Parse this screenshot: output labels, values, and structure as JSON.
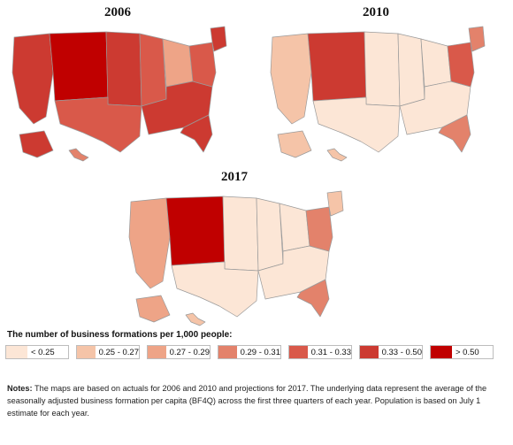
{
  "legend": {
    "title": "The number of business formations per 1,000 people:",
    "bins": [
      {
        "label": "< 0.25",
        "color": "#FCE6D6"
      },
      {
        "label": "0.25 - 0.27",
        "color": "#F5C4A8"
      },
      {
        "label": "0.27 - 0.29",
        "color": "#EEA487"
      },
      {
        "label": "0.29 - 0.31",
        "color": "#E3826B"
      },
      {
        "label": "0.31 - 0.33",
        "color": "#D9594A"
      },
      {
        "label": "0.33 - 0.50",
        "color": "#CC3A31"
      },
      {
        "label": "> 0.50",
        "color": "#C00000"
      }
    ]
  },
  "maps": [
    {
      "title": "2006",
      "regions": {
        "west": 5,
        "mountain": 6,
        "plains": 5,
        "midwest": 4,
        "greatlakes": 2,
        "texas": 4,
        "southeast": 5,
        "northeast": 4,
        "newengland": 5,
        "florida": 5,
        "alaska": 5,
        "hawaii": 3
      }
    },
    {
      "title": "2010",
      "regions": {
        "west": 1,
        "mountain": 5,
        "plains": 0,
        "midwest": 0,
        "greatlakes": 0,
        "texas": 0,
        "southeast": 0,
        "northeast": 4,
        "newengland": 3,
        "florida": 3,
        "alaska": 1,
        "hawaii": 1
      }
    },
    {
      "title": "2017",
      "regions": {
        "west": 2,
        "mountain": 6,
        "plains": 0,
        "midwest": 0,
        "greatlakes": 0,
        "texas": 0,
        "southeast": 0,
        "northeast": 3,
        "newengland": 1,
        "florida": 3,
        "alaska": 2,
        "hawaii": 1
      }
    }
  ],
  "notes": {
    "label": "Notes:",
    "text": " The maps are based on actuals for 2006 and 2010 and projections for 2017. The underlying data represent the average of the seasonally adjusted business formation per capita (BF4Q) across the first three quarters of each year. Population is based on July 1 estimate for each year."
  }
}
